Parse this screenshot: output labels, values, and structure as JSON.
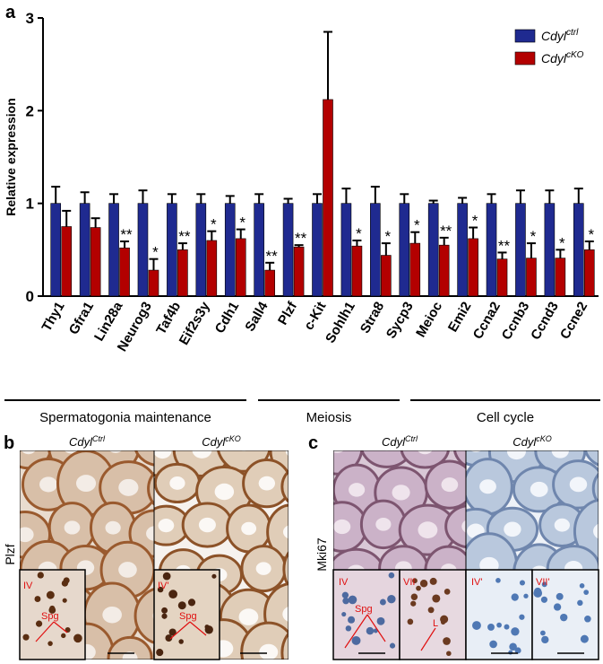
{
  "chart_data": {
    "type": "bar",
    "panel_label": "a",
    "ylabel": "Relative expression",
    "categories": [
      "Thy1",
      "Gfra1",
      "Lin28a",
      "Neurog3",
      "Taf4b",
      "Eif2s3y",
      "Cdh1",
      "Sall4",
      "Plzf",
      "c-Kit",
      "Sohlh1",
      "Stra8",
      "Sycp3",
      "Meioc",
      "Emi2",
      "Ccna2",
      "Ccnb3",
      "Ccnd3",
      "Ccne2"
    ],
    "series": [
      {
        "name": "Cdyl",
        "superscript": "ctrl",
        "color": "#1f2a90",
        "values": [
          1,
          1,
          1,
          1,
          1,
          1,
          1,
          1,
          1,
          1,
          1,
          1,
          1,
          1,
          1,
          1,
          1,
          1,
          1
        ],
        "errors": [
          0.18,
          0.12,
          0.1,
          0.14,
          0.1,
          0.1,
          0.08,
          0.1,
          0.05,
          0.1,
          0.16,
          0.18,
          0.1,
          0.03,
          0.06,
          0.1,
          0.14,
          0.14,
          0.16
        ]
      },
      {
        "name": "Cdyl",
        "superscript": "cKO",
        "color": "#b30000",
        "values": [
          0.75,
          0.74,
          0.52,
          0.28,
          0.5,
          0.6,
          0.62,
          0.28,
          0.53,
          2.12,
          0.54,
          0.44,
          0.57,
          0.55,
          0.62,
          0.4,
          0.41,
          0.41,
          0.5
        ],
        "errors": [
          0.17,
          0.1,
          0.07,
          0.12,
          0.07,
          0.1,
          0.1,
          0.08,
          0.02,
          0.73,
          0.06,
          0.13,
          0.12,
          0.08,
          0.12,
          0.07,
          0.16,
          0.09,
          0.09
        ],
        "significance": [
          null,
          null,
          "**",
          "*",
          "**",
          "*",
          "*",
          "**",
          "**",
          null,
          "*",
          "*",
          "*",
          "**",
          "*",
          "**",
          "*",
          "*",
          "*"
        ]
      }
    ],
    "ylim": [
      0,
      3
    ],
    "yticks": [
      0,
      1,
      2,
      3
    ],
    "groups": [
      "Spermatogonia maintenance",
      "Meiosis",
      "Cell cycle"
    ]
  },
  "panels": {
    "b": {
      "label": "b",
      "stain": "Plzf",
      "left": {
        "name": "Cdyl",
        "superscript": "Ctrl",
        "inset": "IV",
        "cell": "Spg"
      },
      "right": {
        "name": "Cdyl",
        "superscript": "cKO",
        "inset": "IV'",
        "cell": "Spg"
      }
    },
    "c": {
      "label": "c",
      "stain": "Mki67",
      "left": {
        "name": "Cdyl",
        "superscript": "Ctrl",
        "insets": [
          "IV",
          "VII"
        ],
        "cell": "Spg",
        "cell2": "L"
      },
      "right": {
        "name": "Cdyl",
        "superscript": "cKO",
        "insets": [
          "IV'",
          "VII'"
        ]
      }
    }
  }
}
